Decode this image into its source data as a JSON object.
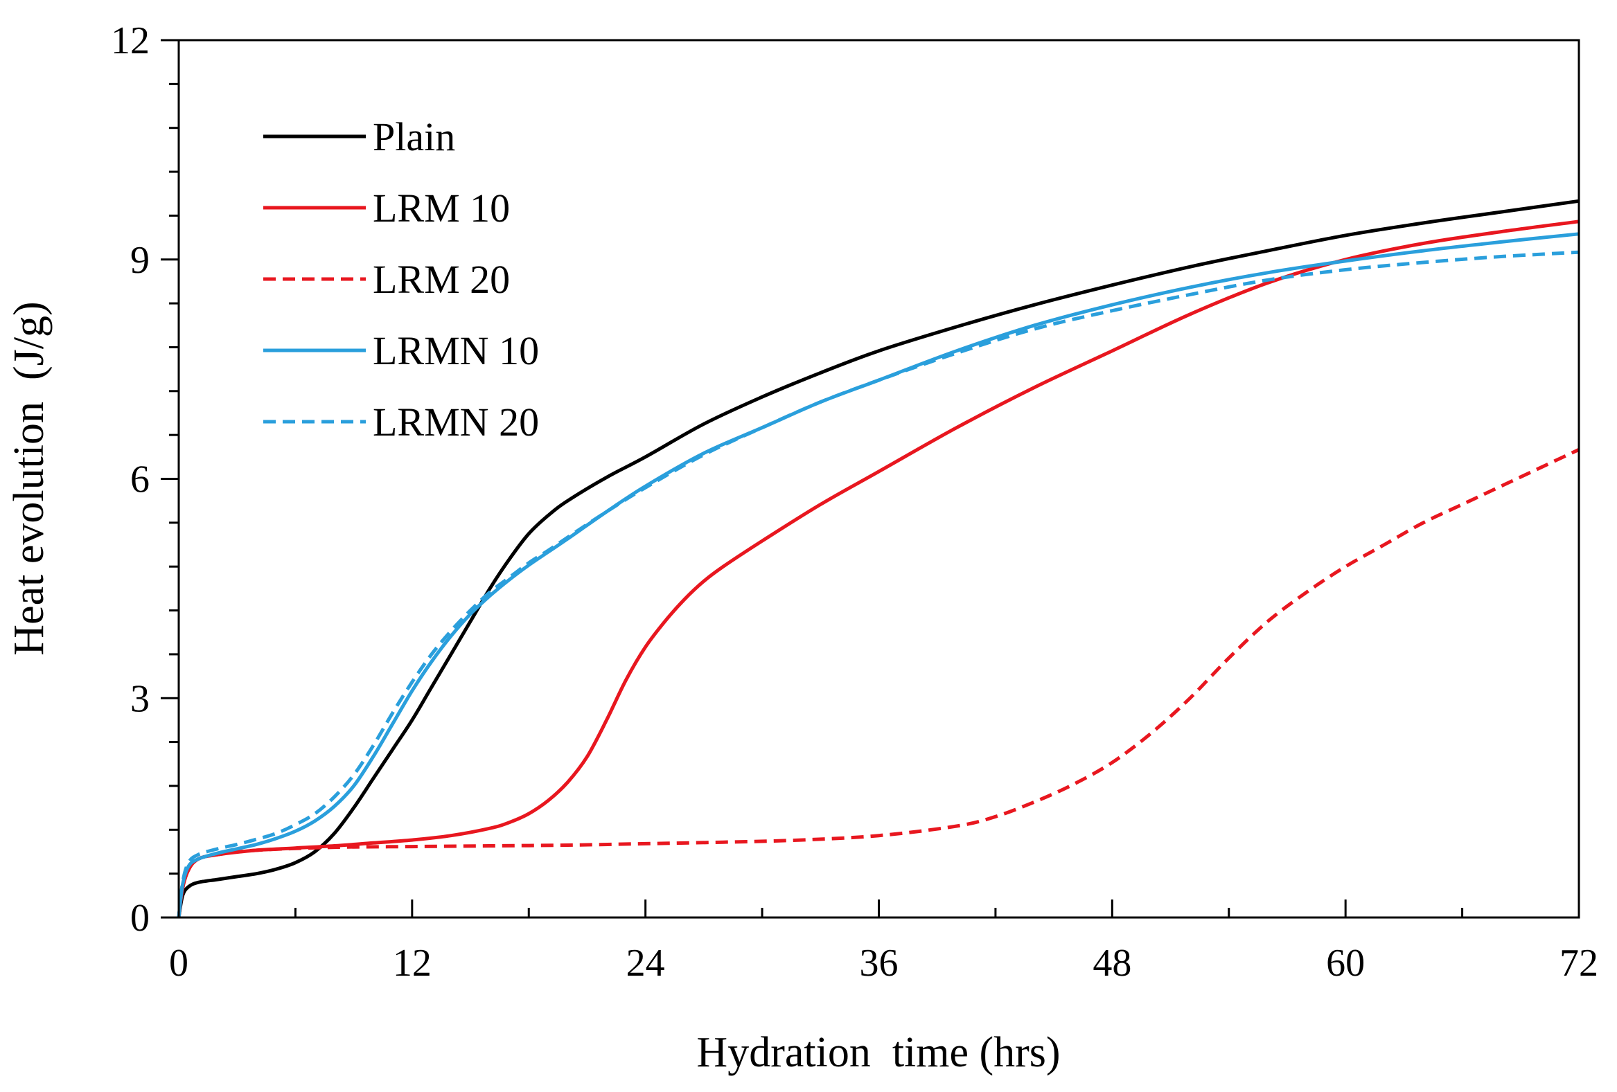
{
  "chart_data": {
    "type": "line",
    "xlabel": "Hydration  time (hrs)",
    "ylabel": "Heat evolution  (J/g)",
    "xlim": [
      0,
      72
    ],
    "ylim": [
      0,
      12
    ],
    "xticks": [
      0,
      12,
      24,
      36,
      48,
      60,
      72
    ],
    "yticks": [
      0,
      3,
      6,
      9,
      12
    ],
    "x_minor_step": 6,
    "y_minor_step": 0.6,
    "grid": false,
    "legend_position": "top-left",
    "series": [
      {
        "name": "Plain",
        "color": "#000000",
        "dash": "solid",
        "points": [
          [
            0,
            0
          ],
          [
            0.2,
            0.3
          ],
          [
            0.5,
            0.42
          ],
          [
            1,
            0.48
          ],
          [
            2,
            0.52
          ],
          [
            3,
            0.56
          ],
          [
            4,
            0.6
          ],
          [
            5,
            0.66
          ],
          [
            6,
            0.75
          ],
          [
            7,
            0.9
          ],
          [
            8,
            1.15
          ],
          [
            9,
            1.5
          ],
          [
            10,
            1.9
          ],
          [
            11,
            2.3
          ],
          [
            12,
            2.7
          ],
          [
            13,
            3.15
          ],
          [
            14,
            3.6
          ],
          [
            15,
            4.05
          ],
          [
            16,
            4.5
          ],
          [
            17,
            4.9
          ],
          [
            18,
            5.25
          ],
          [
            19,
            5.5
          ],
          [
            20,
            5.7
          ],
          [
            22,
            6.02
          ],
          [
            24,
            6.3
          ],
          [
            27,
            6.75
          ],
          [
            30,
            7.12
          ],
          [
            33,
            7.45
          ],
          [
            36,
            7.75
          ],
          [
            40,
            8.08
          ],
          [
            44,
            8.38
          ],
          [
            48,
            8.65
          ],
          [
            52,
            8.9
          ],
          [
            56,
            9.12
          ],
          [
            60,
            9.33
          ],
          [
            64,
            9.5
          ],
          [
            68,
            9.65
          ],
          [
            72,
            9.8
          ]
        ]
      },
      {
        "name": "LRM 10",
        "color": "#e8171f",
        "dash": "solid",
        "points": [
          [
            0,
            0
          ],
          [
            0.2,
            0.4
          ],
          [
            0.5,
            0.65
          ],
          [
            1,
            0.8
          ],
          [
            2,
            0.86
          ],
          [
            4,
            0.92
          ],
          [
            6,
            0.95
          ],
          [
            8,
            0.98
          ],
          [
            10,
            1.02
          ],
          [
            12,
            1.06
          ],
          [
            14,
            1.12
          ],
          [
            16,
            1.22
          ],
          [
            17,
            1.3
          ],
          [
            18,
            1.42
          ],
          [
            19,
            1.6
          ],
          [
            20,
            1.85
          ],
          [
            21,
            2.2
          ],
          [
            22,
            2.7
          ],
          [
            23,
            3.25
          ],
          [
            24,
            3.7
          ],
          [
            25,
            4.05
          ],
          [
            26,
            4.35
          ],
          [
            27,
            4.6
          ],
          [
            28,
            4.8
          ],
          [
            30,
            5.15
          ],
          [
            33,
            5.65
          ],
          [
            36,
            6.1
          ],
          [
            40,
            6.7
          ],
          [
            44,
            7.25
          ],
          [
            48,
            7.75
          ],
          [
            52,
            8.25
          ],
          [
            56,
            8.68
          ],
          [
            60,
            9.0
          ],
          [
            64,
            9.22
          ],
          [
            68,
            9.38
          ],
          [
            72,
            9.52
          ]
        ]
      },
      {
        "name": "LRM 20",
        "color": "#e8171f",
        "dash": "dashed",
        "points": [
          [
            0,
            0
          ],
          [
            0.2,
            0.4
          ],
          [
            0.5,
            0.65
          ],
          [
            1,
            0.8
          ],
          [
            2,
            0.86
          ],
          [
            4,
            0.92
          ],
          [
            8,
            0.96
          ],
          [
            12,
            0.97
          ],
          [
            16,
            0.98
          ],
          [
            20,
            0.99
          ],
          [
            24,
            1.01
          ],
          [
            28,
            1.03
          ],
          [
            32,
            1.06
          ],
          [
            36,
            1.12
          ],
          [
            40,
            1.25
          ],
          [
            42,
            1.38
          ],
          [
            44,
            1.58
          ],
          [
            46,
            1.82
          ],
          [
            48,
            2.12
          ],
          [
            50,
            2.52
          ],
          [
            52,
            3.0
          ],
          [
            54,
            3.55
          ],
          [
            56,
            4.05
          ],
          [
            58,
            4.45
          ],
          [
            60,
            4.8
          ],
          [
            62,
            5.1
          ],
          [
            64,
            5.4
          ],
          [
            66,
            5.65
          ],
          [
            68,
            5.9
          ],
          [
            70,
            6.15
          ],
          [
            72,
            6.4
          ]
        ]
      },
      {
        "name": "LRMN 10",
        "color": "#2a9fdc",
        "dash": "solid",
        "points": [
          [
            0,
            0
          ],
          [
            0.2,
            0.45
          ],
          [
            0.5,
            0.7
          ],
          [
            1,
            0.8
          ],
          [
            2,
            0.88
          ],
          [
            3,
            0.94
          ],
          [
            4,
            1.0
          ],
          [
            5,
            1.08
          ],
          [
            6,
            1.18
          ],
          [
            7,
            1.32
          ],
          [
            8,
            1.52
          ],
          [
            9,
            1.8
          ],
          [
            10,
            2.2
          ],
          [
            11,
            2.65
          ],
          [
            12,
            3.1
          ],
          [
            13,
            3.5
          ],
          [
            14,
            3.85
          ],
          [
            15,
            4.15
          ],
          [
            16,
            4.4
          ],
          [
            17,
            4.62
          ],
          [
            18,
            4.82
          ],
          [
            19,
            5.0
          ],
          [
            20,
            5.18
          ],
          [
            22,
            5.55
          ],
          [
            24,
            5.9
          ],
          [
            27,
            6.35
          ],
          [
            30,
            6.7
          ],
          [
            33,
            7.05
          ],
          [
            36,
            7.35
          ],
          [
            40,
            7.75
          ],
          [
            44,
            8.1
          ],
          [
            48,
            8.38
          ],
          [
            52,
            8.62
          ],
          [
            56,
            8.82
          ],
          [
            60,
            8.98
          ],
          [
            64,
            9.12
          ],
          [
            68,
            9.24
          ],
          [
            72,
            9.35
          ]
        ]
      },
      {
        "name": "LRMN 20",
        "color": "#2a9fdc",
        "dash": "dashed",
        "points": [
          [
            0,
            0
          ],
          [
            0.2,
            0.48
          ],
          [
            0.5,
            0.75
          ],
          [
            1,
            0.86
          ],
          [
            2,
            0.94
          ],
          [
            3,
            1.0
          ],
          [
            4,
            1.07
          ],
          [
            5,
            1.15
          ],
          [
            6,
            1.27
          ],
          [
            7,
            1.42
          ],
          [
            8,
            1.65
          ],
          [
            9,
            1.95
          ],
          [
            10,
            2.35
          ],
          [
            11,
            2.8
          ],
          [
            12,
            3.22
          ],
          [
            13,
            3.6
          ],
          [
            14,
            3.92
          ],
          [
            15,
            4.2
          ],
          [
            16,
            4.45
          ],
          [
            17,
            4.65
          ],
          [
            18,
            4.85
          ],
          [
            19,
            5.02
          ],
          [
            20,
            5.2
          ],
          [
            22,
            5.55
          ],
          [
            24,
            5.88
          ],
          [
            27,
            6.33
          ],
          [
            30,
            6.7
          ],
          [
            33,
            7.05
          ],
          [
            36,
            7.35
          ],
          [
            40,
            7.72
          ],
          [
            44,
            8.05
          ],
          [
            48,
            8.3
          ],
          [
            52,
            8.52
          ],
          [
            56,
            8.72
          ],
          [
            60,
            8.86
          ],
          [
            64,
            8.96
          ],
          [
            68,
            9.04
          ],
          [
            72,
            9.1
          ]
        ]
      }
    ]
  }
}
